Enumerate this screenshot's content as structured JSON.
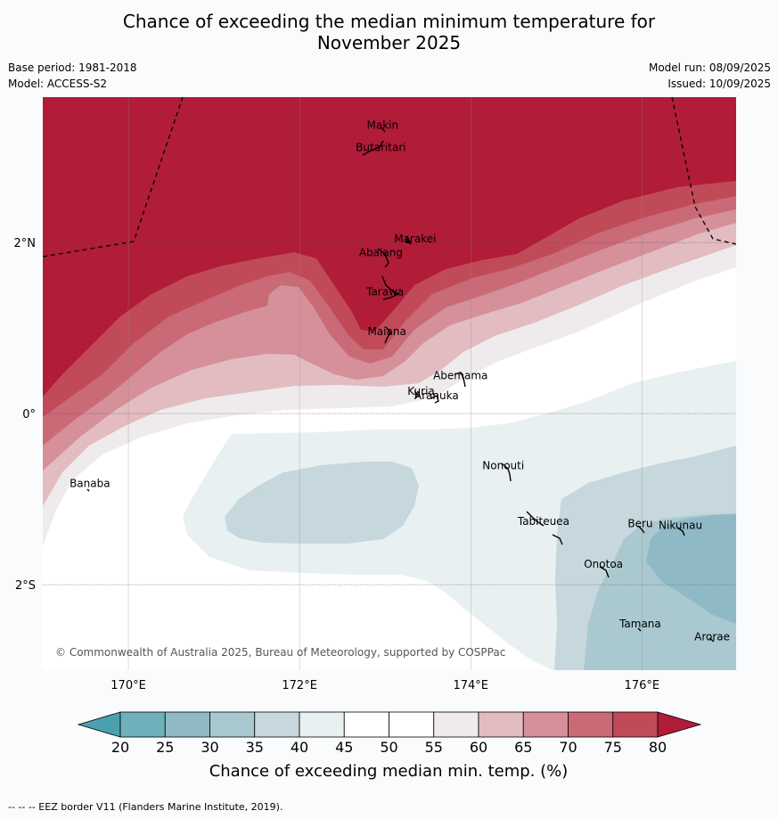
{
  "title_line1": "Chance of exceeding the median minimum temperature for",
  "title_line2": "November 2025",
  "base_period": "Base period: 1981-2018",
  "model": "Model: ACCESS-S2",
  "model_run": "Model run: 08/09/2025",
  "issued": "Issued: 10/09/2025",
  "copyright": "© Commonwealth of Australia 2025, Bureau of Meteorology, supported by COSPPac",
  "footer": "-- -- -- EEZ border V11 (Flanders Marine Institute, 2019).",
  "map": {
    "lon_min": 169.0,
    "lon_max": 177.1,
    "lat_min": -3.0,
    "lat_max": 3.7,
    "lon_ticks": [
      {
        "v": 170,
        "label": "170°E"
      },
      {
        "v": 172,
        "label": "172°E"
      },
      {
        "v": 174,
        "label": "174°E"
      },
      {
        "v": 176,
        "label": "176°E"
      }
    ],
    "lat_ticks": [
      {
        "v": 2,
        "label": "2°N"
      },
      {
        "v": 0,
        "label": "0°"
      },
      {
        "v": -2,
        "label": "2°S"
      }
    ],
    "islands": [
      {
        "name": "Makin",
        "lon": 172.97,
        "lat": 3.33
      },
      {
        "name": "Butaritari",
        "lon": 172.95,
        "lat": 3.07
      },
      {
        "name": "Marakei",
        "lon": 173.35,
        "lat": 2.0
      },
      {
        "name": "Abaiang",
        "lon": 172.95,
        "lat": 1.84
      },
      {
        "name": "Tarawa",
        "lon": 173.0,
        "lat": 1.38
      },
      {
        "name": "Maiana",
        "lon": 173.02,
        "lat": 0.92
      },
      {
        "name": "Abemama",
        "lon": 173.88,
        "lat": 0.4
      },
      {
        "name": "Kuria",
        "lon": 173.42,
        "lat": 0.22
      },
      {
        "name": "Aranuka",
        "lon": 173.6,
        "lat": 0.17
      },
      {
        "name": "Nonouti",
        "lon": 174.38,
        "lat": -0.65
      },
      {
        "name": "Banaba",
        "lon": 169.55,
        "lat": -0.86
      },
      {
        "name": "Tabiteuea",
        "lon": 174.85,
        "lat": -1.3
      },
      {
        "name": "Beru",
        "lon": 175.98,
        "lat": -1.33
      },
      {
        "name": "Nikunau",
        "lon": 176.45,
        "lat": -1.35
      },
      {
        "name": "Onotoa",
        "lon": 175.55,
        "lat": -1.8
      },
      {
        "name": "Tamana",
        "lon": 175.98,
        "lat": -2.5
      },
      {
        "name": "Arorae",
        "lon": 176.82,
        "lat": -2.65
      }
    ]
  },
  "colorbar": {
    "label": "Chance of exceeding median min. temp. (%)",
    "ticks": [
      "20",
      "25",
      "30",
      "35",
      "40",
      "45",
      "50",
      "55",
      "60",
      "65",
      "70",
      "75",
      "80"
    ],
    "colors": {
      "below20": "#4aa1ad",
      "20-25": "#6eb1bd",
      "25-30": "#8fbac5",
      "30-35": "#aac8cf",
      "35-40": "#c6d8dd",
      "40-45": "#e9f0f1",
      "45-50": "#ffffff",
      "50-55": "#ffffff",
      "55-60": "#efebec",
      "60-65": "#e2bcc1",
      "65-70": "#d5909a",
      "70-75": "#c96a76",
      "75-80": "#c14a59",
      "above80": "#b11c38"
    }
  }
}
